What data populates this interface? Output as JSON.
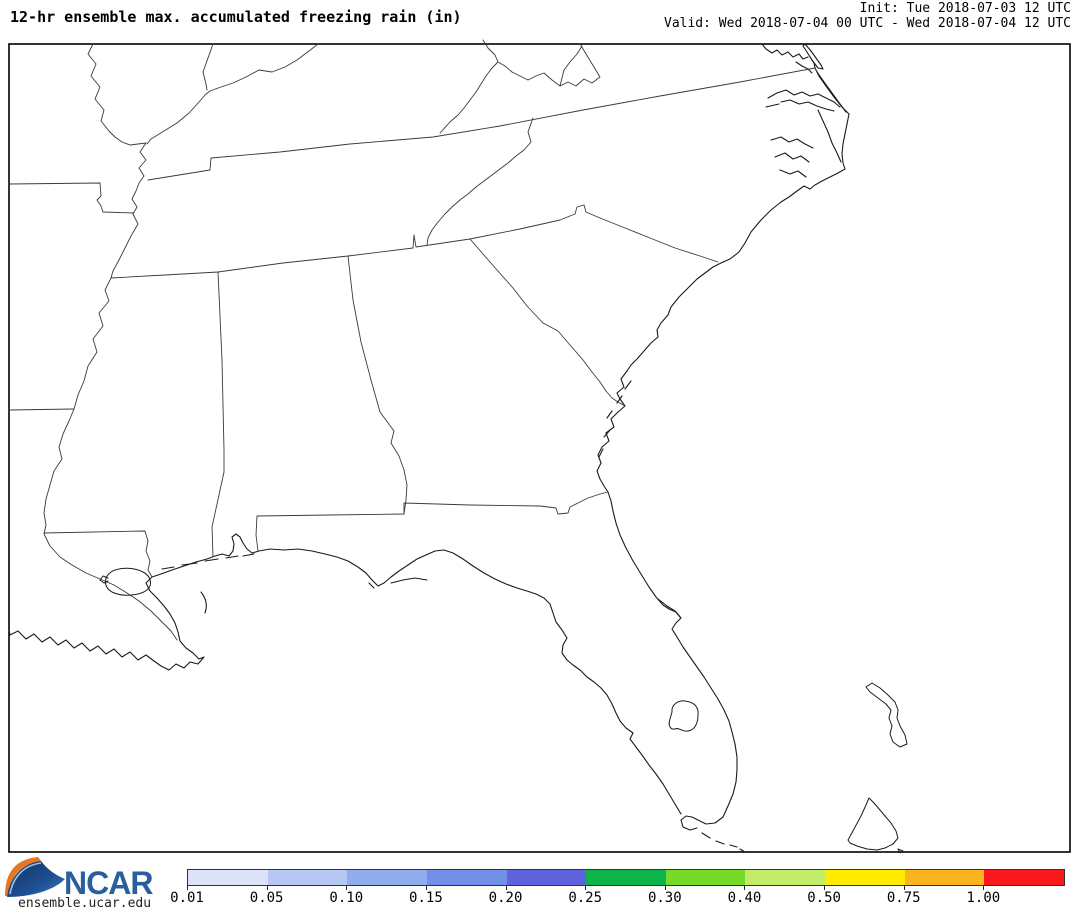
{
  "header": {
    "title": "12-hr ensemble max. accumulated freezing rain (in)",
    "init_line": "Init: Tue 2018-07-03 12 UTC",
    "valid_line": "Valid: Wed 2018-07-04 00 UTC - Wed 2018-07-04 12 UTC"
  },
  "branding": {
    "logo_text": "NCAR",
    "site": "ensemble.ucar.edu"
  },
  "colorbar": {
    "units": "in",
    "tick_labels": [
      "0.01",
      "0.05",
      "0.10",
      "0.15",
      "0.20",
      "0.25",
      "0.30",
      "0.40",
      "0.50",
      "0.75",
      "1.00"
    ],
    "levels": [
      0.01,
      0.05,
      0.1,
      0.15,
      0.2,
      0.25,
      0.3,
      0.4,
      0.5,
      0.75,
      1.0
    ],
    "segment_colors": [
      "#dce3f8",
      "#b6c7f1",
      "#90aeee",
      "#7390e9",
      "#5e62dc",
      "#0cb44b",
      "#77da27",
      "#c3ec69",
      "#ffec01",
      "#fcb41e",
      "#fa1a1d"
    ]
  },
  "map": {
    "field_note": "no accumulated freezing rain shaded on map"
  }
}
